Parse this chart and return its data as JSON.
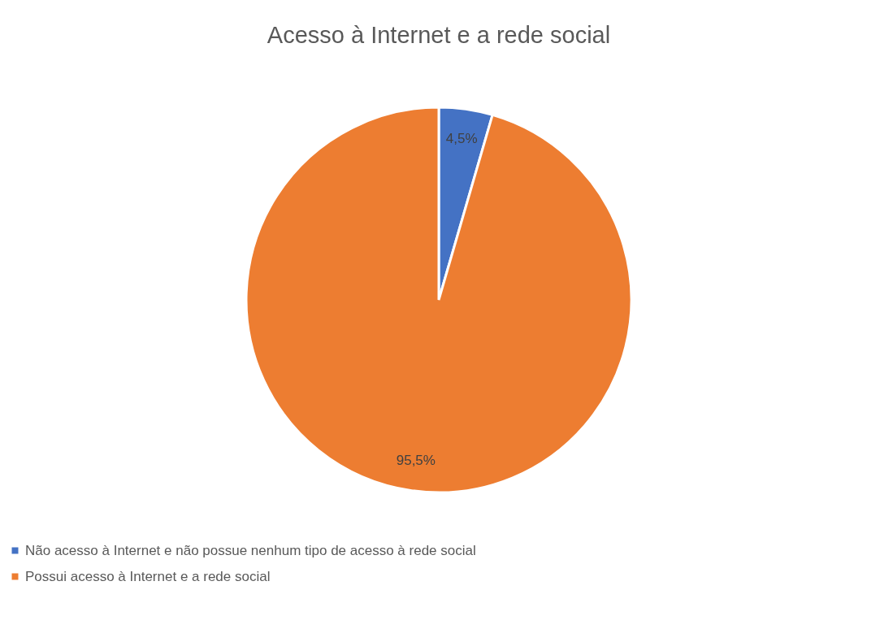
{
  "chart_data": {
    "type": "pie",
    "title": "Acesso à Internet e a rede social",
    "categories": [
      "Não acesso à Internet e não possue nenhum tipo de acesso à rede social",
      "Possui acesso à Internet e a rede social"
    ],
    "values": [
      4.5,
      95.5
    ],
    "colors": [
      "#4472c4",
      "#ed7d31"
    ],
    "value_labels": [
      "4,5%",
      "95,5%"
    ],
    "legend": "bottom"
  }
}
